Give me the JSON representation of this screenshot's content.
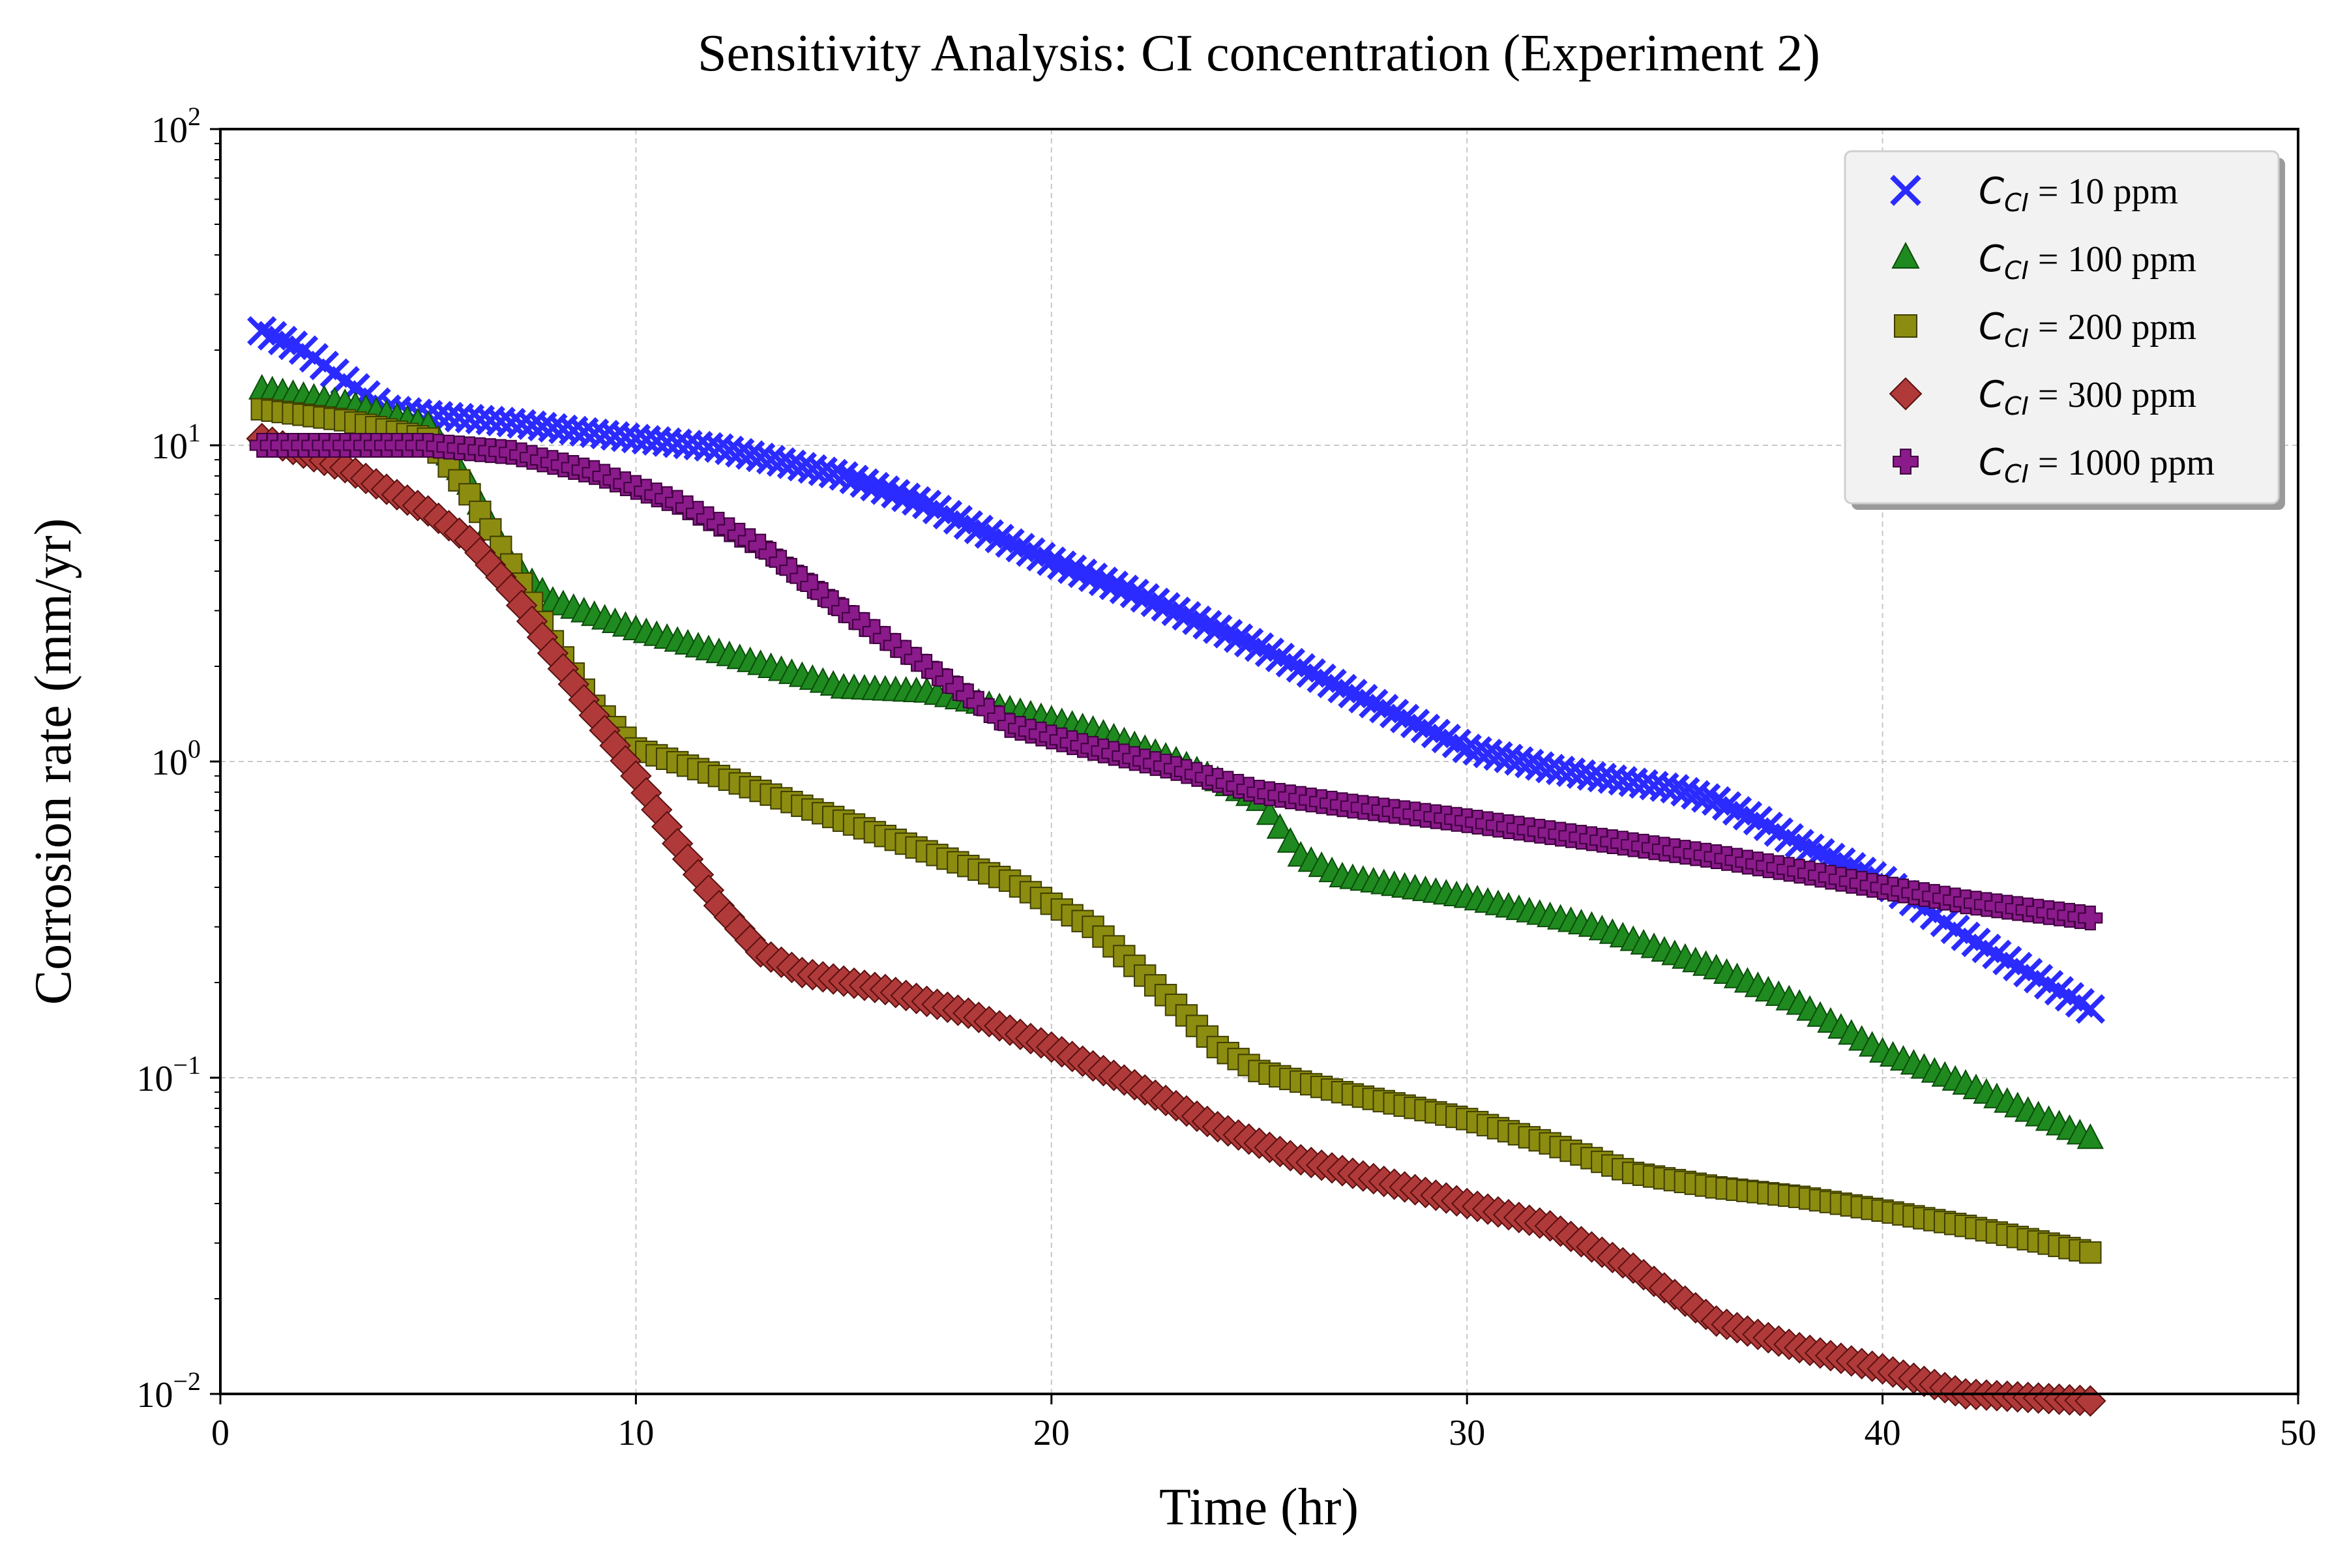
{
  "chart_data": {
    "type": "scatter",
    "title": "Sensitivity Analysis: CI concentration (Experiment 2)",
    "xlabel": "Time (hr)",
    "ylabel": "Corrosion rate (mm/yr)",
    "xlim": [
      0,
      50
    ],
    "ylim": [
      0.01,
      100
    ],
    "yscale": "log",
    "grid": true,
    "legend_position": "top-right",
    "x_ticks": [
      {
        "value": 0,
        "label": "0"
      },
      {
        "value": 10,
        "label": "10"
      },
      {
        "value": 20,
        "label": "20"
      },
      {
        "value": 30,
        "label": "30"
      },
      {
        "value": 40,
        "label": "40"
      },
      {
        "value": 50,
        "label": "50"
      }
    ],
    "y_ticks": [
      {
        "value": 0.01,
        "base": "10",
        "exp": "−2"
      },
      {
        "value": 0.1,
        "base": "10",
        "exp": "−1"
      },
      {
        "value": 1,
        "base": "10",
        "exp": "0"
      },
      {
        "value": 10,
        "base": "10",
        "exp": "1"
      },
      {
        "value": 100,
        "base": "10",
        "exp": "2"
      }
    ],
    "x_range": [
      1,
      45
    ],
    "series": [
      {
        "name_symbol": "C",
        "name_subscript": "CI",
        "name_rest": " = 10 ppm",
        "marker": "x",
        "color": "#2b2bff",
        "edge": "#2b2bff",
        "anchors": [
          [
            1,
            23
          ],
          [
            2,
            20
          ],
          [
            3,
            16
          ],
          [
            4,
            13
          ],
          [
            5,
            12.5
          ],
          [
            7,
            11.8
          ],
          [
            10,
            10.5
          ],
          [
            12,
            9.8
          ],
          [
            15,
            8
          ],
          [
            17,
            6.5
          ],
          [
            18,
            5.6
          ],
          [
            20,
            4.3
          ],
          [
            22,
            3.4
          ],
          [
            25,
            2.3
          ],
          [
            27,
            1.7
          ],
          [
            30,
            1.1
          ],
          [
            32,
            0.95
          ],
          [
            33,
            0.9
          ],
          [
            35,
            0.82
          ],
          [
            36,
            0.75
          ],
          [
            37,
            0.65
          ],
          [
            38,
            0.55
          ],
          [
            40,
            0.42
          ],
          [
            42,
            0.28
          ],
          [
            45,
            0.165
          ]
        ]
      },
      {
        "name_symbol": "C",
        "name_subscript": "CI",
        "name_rest": " = 100 ppm",
        "marker": "triangle",
        "color": "#1f8a1f",
        "edge": "#0b4d0b",
        "anchors": [
          [
            1,
            15
          ],
          [
            3,
            13.5
          ],
          [
            5,
            11.5
          ],
          [
            6,
            7.5
          ],
          [
            7,
            4.2
          ],
          [
            8,
            3.2
          ],
          [
            10,
            2.6
          ],
          [
            12,
            2.2
          ],
          [
            14,
            1.85
          ],
          [
            15,
            1.7
          ],
          [
            17,
            1.65
          ],
          [
            19,
            1.45
          ],
          [
            21,
            1.25
          ],
          [
            23,
            1.0
          ],
          [
            25,
            0.75
          ],
          [
            26,
            0.5
          ],
          [
            27,
            0.43
          ],
          [
            30,
            0.37
          ],
          [
            33,
            0.3
          ],
          [
            36,
            0.22
          ],
          [
            38,
            0.17
          ],
          [
            40,
            0.12
          ],
          [
            42,
            0.095
          ],
          [
            45,
            0.064
          ]
        ]
      },
      {
        "name_symbol": "C",
        "name_subscript": "CI",
        "name_rest": " = 200 ppm",
        "marker": "square",
        "color": "#8c8c10",
        "edge": "#3e3e00",
        "anchors": [
          [
            1,
            13
          ],
          [
            3,
            12
          ],
          [
            5,
            10.5
          ],
          [
            6,
            7
          ],
          [
            7,
            4.2
          ],
          [
            8,
            2.4
          ],
          [
            9,
            1.5
          ],
          [
            10,
            1.1
          ],
          [
            12,
            0.9
          ],
          [
            15,
            0.65
          ],
          [
            17,
            0.52
          ],
          [
            19,
            0.42
          ],
          [
            21,
            0.3
          ],
          [
            23,
            0.17
          ],
          [
            24,
            0.125
          ],
          [
            25,
            0.105
          ],
          [
            27,
            0.09
          ],
          [
            30,
            0.074
          ],
          [
            32,
            0.062
          ],
          [
            34,
            0.05
          ],
          [
            36,
            0.045
          ],
          [
            38,
            0.042
          ],
          [
            40,
            0.038
          ],
          [
            42,
            0.034
          ],
          [
            45,
            0.028
          ]
        ]
      },
      {
        "name_symbol": "C",
        "name_subscript": "CI",
        "name_rest": " = 300 ppm",
        "marker": "diamond",
        "color": "#b03a3a",
        "edge": "#5a1010",
        "anchors": [
          [
            1,
            10.5
          ],
          [
            3,
            8.5
          ],
          [
            5,
            6.2
          ],
          [
            6,
            5
          ],
          [
            7,
            3.5
          ],
          [
            8,
            2.2
          ],
          [
            9,
            1.4
          ],
          [
            10,
            0.9
          ],
          [
            11,
            0.55
          ],
          [
            12,
            0.35
          ],
          [
            13,
            0.25
          ],
          [
            14,
            0.215
          ],
          [
            16,
            0.19
          ],
          [
            18,
            0.16
          ],
          [
            20,
            0.125
          ],
          [
            22,
            0.095
          ],
          [
            24,
            0.07
          ],
          [
            26,
            0.055
          ],
          [
            28,
            0.047
          ],
          [
            30,
            0.04
          ],
          [
            32,
            0.034
          ],
          [
            34,
            0.025
          ],
          [
            36,
            0.017
          ],
          [
            38,
            0.014
          ],
          [
            40,
            0.012
          ],
          [
            42,
            0.01
          ],
          [
            45,
            0.0095
          ]
        ]
      },
      {
        "name_symbol": "C",
        "name_subscript": "CI",
        "name_rest": " = 1000 ppm",
        "marker": "plus",
        "color": "#8b1a8b",
        "edge": "#3d003d",
        "anchors": [
          [
            1,
            10
          ],
          [
            5,
            10
          ],
          [
            7,
            9.5
          ],
          [
            9,
            8.2
          ],
          [
            11,
            6.6
          ],
          [
            13,
            4.8
          ],
          [
            15,
            3
          ],
          [
            17,
            2
          ],
          [
            19,
            1.3
          ],
          [
            21,
            1.1
          ],
          [
            23,
            0.95
          ],
          [
            25,
            0.8
          ],
          [
            27,
            0.73
          ],
          [
            30,
            0.65
          ],
          [
            33,
            0.57
          ],
          [
            36,
            0.5
          ],
          [
            38,
            0.45
          ],
          [
            40,
            0.4
          ],
          [
            42,
            0.36
          ],
          [
            45,
            0.32
          ]
        ]
      }
    ]
  }
}
